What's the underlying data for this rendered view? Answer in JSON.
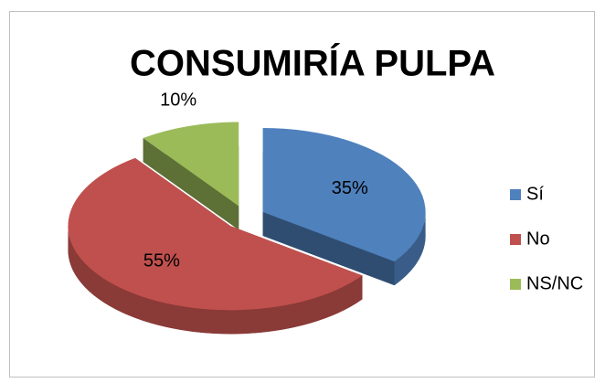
{
  "chart_data": {
    "type": "pie",
    "title": "CONSUMIRÍA PULPA",
    "categories": [
      "Sí",
      "No",
      "NS/NC"
    ],
    "values": [
      35,
      55,
      10
    ],
    "value_labels": [
      "35%",
      "55%",
      "10%"
    ],
    "colors": [
      "#4f81bd",
      "#c0504d",
      "#9bbb59"
    ],
    "legend": "right"
  }
}
